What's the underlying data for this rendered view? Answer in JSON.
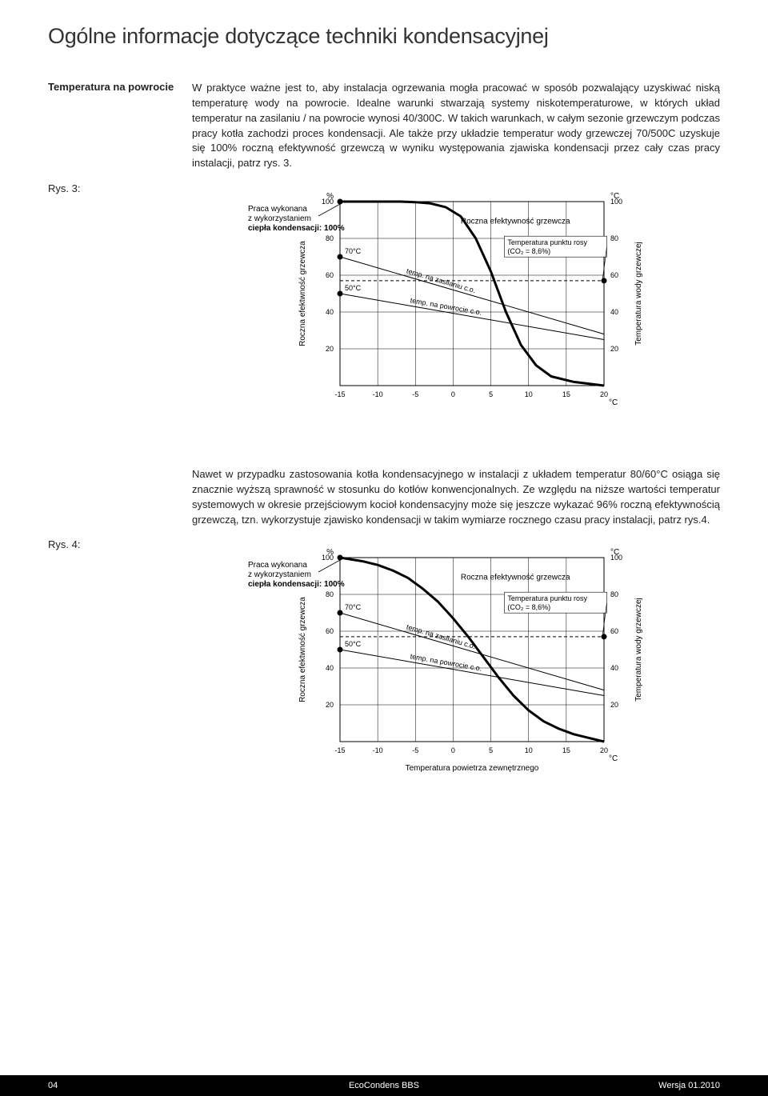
{
  "title": "Ogólne informacje dotyczące techniki kondensacyjnej",
  "section": {
    "heading": "Temperatura na powrocie",
    "para1": "W praktyce ważne jest to, aby instalacja ogrzewania mogła pracować w sposób pozwalający uzyskiwać niską temperaturę wody na powrocie. Idealne warunki stwarzają systemy niskotemperaturowe, w których układ temperatur na zasilaniu / na powrocie wynosi 40/300C. W takich warunkach, w całym sezonie grzewczym podczas pracy kotła zachodzi proces kondensacji. Ale także przy układzie temperatur wody grzewczej 70/500C uzyskuje się 100% roczną efektywność grzewczą w wyniku występowania zjawiska kondensacji przez cały czas pracy instalacji, patrz rys. 3.",
    "para2": "Nawet w przypadku zastosowania kotła kondensacyjnego w instalacji z układem temperatur 80/60°C osiąga się znacznie wyższą sprawność w stosunku do kotłów konwencjonalnych. Ze względu na niższe wartości temperatur systemowych w okresie przejściowym kocioł kondensacyjny może się jeszcze wykazać 96% roczną efektywnością grzewczą, tzn. wykorzystuje zjawisko kondensacji w takim wymiarze rocznego czasu pracy instalacji, patrz rys.4."
  },
  "fig3": {
    "label": "Rys. 3:"
  },
  "fig4": {
    "label": "Rys. 4:"
  },
  "chart_common": {
    "left_caption_l1": "Praca wykonana",
    "left_caption_l2": "z wykorzystaniem",
    "left_caption_l3": "ciepła kondensacji: 100%",
    "left_axis_label": "Roczna efektwność grzewcza",
    "right_axis_label": "Temperatura wody grzewczej",
    "x_axis_label": "Temperatura powietrza zewnętrznego",
    "curve_label": "Roczna efektywność grzewcza",
    "dew_l1": "Temperatura punktu rosy",
    "dew_l2": "(CO₂ = 8,6%)",
    "line_supply": "temp. na zasilaniu c.o.",
    "line_return": "temp. na powrocie c.o.",
    "mark70": "70°C",
    "mark50": "50°C",
    "x_ticks": [
      "-15",
      "-10",
      "-5",
      "0",
      "5",
      "10",
      "15",
      "20"
    ],
    "y_ticks_left": [
      "20",
      "40",
      "60",
      "80",
      "100"
    ],
    "y_ticks_right": [
      "20",
      "40",
      "60",
      "80",
      "100"
    ],
    "unit_pct": "%",
    "unit_c": "°C",
    "grid_color": "#000000",
    "bg": "#ffffff",
    "x_range": [
      -15,
      20
    ],
    "y_range": [
      0,
      100
    ]
  },
  "chart3": {
    "efficiency_curve": [
      [
        -15,
        100
      ],
      [
        -10,
        100
      ],
      [
        -7,
        100
      ],
      [
        -5,
        99.7
      ],
      [
        -3,
        99
      ],
      [
        -1,
        97
      ],
      [
        1,
        92
      ],
      [
        3,
        80
      ],
      [
        5,
        62
      ],
      [
        7,
        40
      ],
      [
        9,
        22
      ],
      [
        11,
        11
      ],
      [
        13,
        5
      ],
      [
        16,
        2
      ],
      [
        20,
        0
      ]
    ],
    "supply_line": [
      [
        -15,
        70
      ],
      [
        20,
        28
      ]
    ],
    "return_line": [
      [
        -15,
        50
      ],
      [
        20,
        25
      ]
    ],
    "dew_line": [
      [
        -15,
        57
      ],
      [
        20,
        57
      ]
    ],
    "dew_dot": [
      20,
      57
    ],
    "mark70_dot": [
      -15,
      70
    ],
    "mark50_dot": [
      -15,
      50
    ],
    "curve_start_dot": [
      -15,
      100
    ]
  },
  "chart4": {
    "efficiency_curve": [
      [
        -15,
        100
      ],
      [
        -12,
        98
      ],
      [
        -10,
        96
      ],
      [
        -8,
        93
      ],
      [
        -6,
        89
      ],
      [
        -4,
        83
      ],
      [
        -2,
        76
      ],
      [
        0,
        67
      ],
      [
        2,
        57
      ],
      [
        4,
        46
      ],
      [
        6,
        35
      ],
      [
        8,
        25
      ],
      [
        10,
        17
      ],
      [
        12,
        11
      ],
      [
        14,
        7
      ],
      [
        16,
        4
      ],
      [
        18,
        2
      ],
      [
        20,
        0
      ]
    ],
    "supply_line": [
      [
        -15,
        70
      ],
      [
        20,
        28
      ]
    ],
    "return_line": [
      [
        -15,
        50
      ],
      [
        20,
        25
      ]
    ],
    "dew_line": [
      [
        -15,
        57
      ],
      [
        20,
        57
      ]
    ],
    "dew_dot": [
      20,
      57
    ],
    "mark70_dot": [
      -15,
      70
    ],
    "mark50_dot": [
      -15,
      50
    ],
    "curve_start_dot": [
      -15,
      100
    ]
  },
  "footer": {
    "page": "04",
    "product": "EcoCondens BBS",
    "version": "Wersja 01.2010"
  }
}
